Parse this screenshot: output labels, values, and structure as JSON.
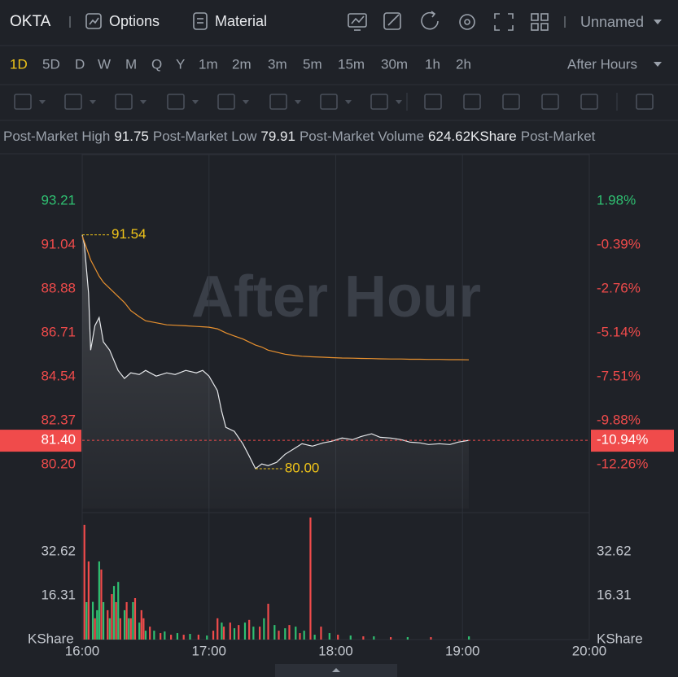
{
  "header": {
    "symbol": "OKTA",
    "options": "Options",
    "material": "Material",
    "layout": "Unnamed"
  },
  "periods": [
    "1D",
    "5D",
    "D",
    "W",
    "M",
    "Q",
    "Y",
    "1m",
    "2m",
    "3m",
    "5m",
    "15m",
    "30m",
    "1h",
    "2h"
  ],
  "session": "After Hours",
  "stats": [
    {
      "label": "Post-Market High",
      "value": "91.75"
    },
    {
      "label": "Post-Market Low",
      "value": "79.91"
    },
    {
      "label": "Post-Market Volume",
      "value": "624.62KShare"
    },
    {
      "label": "Post-Market"
    }
  ],
  "chart_data": {
    "type": "line",
    "watermark": "After Hour",
    "x": [
      0,
      1,
      3,
      4,
      6,
      8,
      10,
      13,
      17,
      20,
      23,
      27,
      30,
      35,
      40,
      44,
      49,
      54,
      57,
      60,
      64,
      66,
      68,
      72,
      76,
      79,
      82,
      85,
      88,
      92,
      96,
      101,
      104,
      109,
      114,
      118,
      123,
      128,
      132,
      137,
      141,
      146,
      151,
      155,
      160,
      164,
      169,
      174,
      178,
      183
    ],
    "xlim": [
      0,
      240
    ],
    "xticks": [
      {
        "value": 0,
        "label": "16:00"
      },
      {
        "value": 60,
        "label": "17:00"
      },
      {
        "value": 120,
        "label": "18:00"
      },
      {
        "value": 180,
        "label": "19:00"
      },
      {
        "value": 240,
        "label": "20:00"
      }
    ],
    "grid": "vertical",
    "ylim": [
      78.03,
      95.5
    ],
    "yticks": [
      93.21,
      91.04,
      88.88,
      86.71,
      84.54,
      82.37,
      {
        "value": 80.2,
        "label": "80.20"
      }
    ],
    "y2lim": [
      -14.63,
      4.49
    ],
    "y2ticks": [
      {
        "value": 1.98,
        "label": "1.98%"
      },
      {
        "value": -0.39,
        "label": "-0.39%"
      },
      {
        "value": -2.76,
        "label": "-2.76%"
      },
      {
        "value": -5.14,
        "label": "-5.14%"
      },
      {
        "value": -7.51,
        "label": "-7.51%"
      },
      {
        "value": -9.88,
        "label": "-9.88%"
      },
      {
        "value": -12.26,
        "label": "-12.26%"
      }
    ],
    "up_color": "#2fbf71",
    "down_color": "#f04b4b",
    "series": [
      {
        "color": "#e6e8eb",
        "values": [
          91.54,
          91.08,
          88.67,
          85.85,
          87.06,
          87.46,
          86.26,
          85.85,
          84.85,
          84.45,
          84.73,
          84.65,
          84.85,
          84.57,
          84.73,
          84.65,
          84.85,
          84.73,
          84.85,
          84.57,
          83.85,
          82.84,
          82.04,
          81.84,
          81.23,
          80.63,
          80.0,
          80.23,
          80.15,
          80.31,
          80.71,
          81.03,
          81.23,
          81.11,
          81.27,
          81.35,
          81.51,
          81.43,
          81.59,
          81.72,
          81.55,
          81.51,
          81.43,
          81.31,
          81.27,
          81.19,
          81.23,
          81.19,
          81.31,
          81.4
        ]
      },
      {
        "color": "#e8912f",
        "values": [
          91.48,
          91.2,
          90.6,
          90.3,
          89.9,
          89.5,
          89.2,
          88.9,
          88.5,
          88.2,
          87.8,
          87.5,
          87.3,
          87.2,
          87.1,
          87.08,
          87.05,
          87.02,
          87.0,
          86.98,
          86.9,
          86.8,
          86.7,
          86.55,
          86.4,
          86.25,
          86.1,
          86.0,
          85.85,
          85.75,
          85.65,
          85.58,
          85.55,
          85.52,
          85.5,
          85.48,
          85.46,
          85.45,
          85.44,
          85.43,
          85.42,
          85.41,
          85.41,
          85.4,
          85.4,
          85.39,
          85.39,
          85.38,
          85.38,
          85.37
        ]
      }
    ],
    "markers": [
      {
        "x": 0,
        "value": 91.54,
        "label": "91.54"
      },
      {
        "x": 82,
        "value": 80.0,
        "label": "80.00"
      }
    ],
    "marker_color": "#f0c419",
    "last": {
      "value": 81.4,
      "label": "81.40",
      "change": {
        "value": -10.94,
        "label": "-10.94%"
      },
      "color": "#f04b4b"
    },
    "volume": {
      "unit": "KShare",
      "ylim": [
        0,
        46.51
      ],
      "yticks": [
        32.62,
        16.31
      ],
      "x": [
        1,
        2,
        3,
        5,
        6,
        7,
        8,
        9,
        10,
        12,
        13,
        14,
        15,
        16,
        17,
        18,
        20,
        21,
        22,
        23,
        24,
        25,
        27,
        28,
        29,
        30,
        32,
        34,
        37,
        39,
        42,
        45,
        48,
        51,
        55,
        59,
        62,
        64,
        66,
        67,
        70,
        72,
        74,
        77,
        79,
        81,
        84,
        86,
        88,
        91,
        93,
        96,
        98,
        101,
        103,
        105,
        108,
        110,
        113,
        117,
        121,
        127,
        133,
        138,
        146,
        154,
        165,
        183
      ],
      "values": [
        42.6,
        13.9,
        29.0,
        14.0,
        7.9,
        10.9,
        29.0,
        26.0,
        13.9,
        10.9,
        7.9,
        16.9,
        19.9,
        13.9,
        21.4,
        7.9,
        10.9,
        13.9,
        7.9,
        7.9,
        13.9,
        15.4,
        6.3,
        10.9,
        7.9,
        3.3,
        4.8,
        3.3,
        2.4,
        3.0,
        1.8,
        2.4,
        1.8,
        2.1,
        1.8,
        1.5,
        3.3,
        7.9,
        6.3,
        4.8,
        6.3,
        4.2,
        5.4,
        6.3,
        7.3,
        4.8,
        4.8,
        7.9,
        13.3,
        5.4,
        3.3,
        4.2,
        5.4,
        4.8,
        2.4,
        3.3,
        45.3,
        1.8,
        4.8,
        2.4,
        1.8,
        1.5,
        1.2,
        1.2,
        0.9,
        0.9,
        0.9,
        1.2
      ],
      "colors": [
        "#f04b4b",
        "#2fbf71",
        "#f04b4b",
        "#2fbf71",
        "#f04b4b",
        "#2fbf71",
        "#2fbf71",
        "#f04b4b",
        "#2fbf71",
        "#f04b4b",
        "#2fbf71",
        "#f04b4b",
        "#2fbf71",
        "#f04b4b",
        "#2fbf71",
        "#f04b4b",
        "#2fbf71",
        "#f04b4b",
        "#2fbf71",
        "#f04b4b",
        "#2fbf71",
        "#f04b4b",
        "#2fbf71",
        "#f04b4b",
        "#f04b4b",
        "#2fbf71",
        "#f04b4b",
        "#2fbf71",
        "#f04b4b",
        "#2fbf71",
        "#f04b4b",
        "#2fbf71",
        "#f04b4b",
        "#2fbf71",
        "#f04b4b",
        "#2fbf71",
        "#f04b4b",
        "#f04b4b",
        "#2fbf71",
        "#f04b4b",
        "#f04b4b",
        "#2fbf71",
        "#f04b4b",
        "#2fbf71",
        "#f04b4b",
        "#2fbf71",
        "#f04b4b",
        "#2fbf71",
        "#f04b4b",
        "#2fbf71",
        "#f04b4b",
        "#2fbf71",
        "#f04b4b",
        "#2fbf71",
        "#f04b4b",
        "#2fbf71",
        "#f04b4b",
        "#2fbf71",
        "#f04b4b",
        "#2fbf71",
        "#f04b4b",
        "#2fbf71",
        "#f04b4b",
        "#2fbf71",
        "#f04b4b",
        "#2fbf71",
        "#f04b4b",
        "#2fbf71"
      ]
    }
  }
}
